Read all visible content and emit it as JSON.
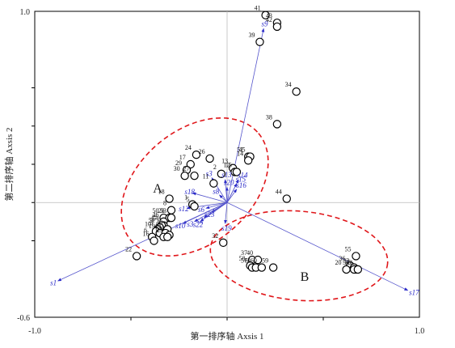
{
  "chart_data": {
    "type": "scatter",
    "title": "",
    "xlabel": "第一排序轴  Axsis 1",
    "ylabel": "第二排序轴  Axsis 2",
    "xlim": [
      -1.0,
      1.0
    ],
    "ylim": [
      -0.6,
      1.0
    ],
    "x_tick_labels": [
      {
        "value": -1.0,
        "label": "-1.0"
      },
      {
        "value": 1.0,
        "label": "1.0"
      }
    ],
    "y_tick_labels": [
      {
        "value": 1.0,
        "label": "1.0"
      },
      {
        "value": -0.6,
        "label": "-0.6"
      }
    ],
    "x_minor_ticks": [
      -0.5,
      0.0,
      0.5
    ],
    "y_minor_ticks": [
      0.6,
      0.4,
      0.2,
      0.0,
      -0.2
    ],
    "grid": false,
    "samples": [
      {
        "label": "41",
        "x": 0.2,
        "y": 0.98
      },
      {
        "label": "43",
        "x": 0.26,
        "y": 0.94
      },
      {
        "label": "42",
        "x": 0.26,
        "y": 0.92
      },
      {
        "label": "39",
        "x": 0.17,
        "y": 0.84
      },
      {
        "label": "34",
        "x": 0.36,
        "y": 0.58
      },
      {
        "label": "38",
        "x": 0.26,
        "y": 0.41
      },
      {
        "label": "52",
        "x": 0.11,
        "y": 0.24
      },
      {
        "label": "45",
        "x": 0.12,
        "y": 0.24
      },
      {
        "label": "14",
        "x": 0.11,
        "y": 0.22
      },
      {
        "label": "13",
        "x": 0.03,
        "y": 0.18
      },
      {
        "label": "12",
        "x": 0.04,
        "y": 0.16
      },
      {
        "label": "15",
        "x": 0.05,
        "y": 0.16
      },
      {
        "label": "24",
        "x": -0.16,
        "y": 0.25
      },
      {
        "label": "26",
        "x": -0.09,
        "y": 0.23
      },
      {
        "label": "17",
        "x": -0.19,
        "y": 0.2
      },
      {
        "label": "29",
        "x": -0.21,
        "y": 0.17
      },
      {
        "label": "27",
        "x": -0.17,
        "y": 0.14
      },
      {
        "label": "30",
        "x": -0.22,
        "y": 0.14
      },
      {
        "label": "2",
        "x": -0.03,
        "y": 0.15
      },
      {
        "label": "11",
        "x": -0.07,
        "y": 0.1
      },
      {
        "label": "18",
        "x": -0.3,
        "y": 0.02
      },
      {
        "label": "44",
        "x": 0.31,
        "y": 0.02
      },
      {
        "label": "8",
        "x": -0.29,
        "y": -0.04
      },
      {
        "label": "1",
        "x": -0.18,
        "y": -0.01
      },
      {
        "label": "5",
        "x": -0.17,
        "y": -0.02
      },
      {
        "label": "50",
        "x": -0.33,
        "y": -0.08
      },
      {
        "label": "28",
        "x": -0.3,
        "y": -0.08
      },
      {
        "label": "53",
        "x": -0.29,
        "y": -0.08
      },
      {
        "label": "46",
        "x": -0.33,
        "y": -0.1
      },
      {
        "label": "54",
        "x": -0.33,
        "y": -0.12
      },
      {
        "label": "47",
        "x": -0.34,
        "y": -0.12
      },
      {
        "label": "51",
        "x": -0.35,
        "y": -0.13
      },
      {
        "label": "3",
        "x": -0.36,
        "y": -0.14
      },
      {
        "label": "10",
        "x": -0.37,
        "y": -0.15
      },
      {
        "label": "48",
        "x": -0.31,
        "y": -0.14
      },
      {
        "label": "6",
        "x": -0.39,
        "y": -0.18
      },
      {
        "label": "19",
        "x": -0.35,
        "y": -0.16
      },
      {
        "label": "49",
        "x": -0.32,
        "y": -0.16
      },
      {
        "label": "31",
        "x": -0.3,
        "y": -0.17
      },
      {
        "label": "16",
        "x": -0.38,
        "y": -0.2
      },
      {
        "label": "9",
        "x": -0.33,
        "y": -0.18
      },
      {
        "label": "23",
        "x": -0.31,
        "y": -0.18
      },
      {
        "label": "22",
        "x": -0.47,
        "y": -0.28
      },
      {
        "label": "32",
        "x": -0.02,
        "y": -0.21
      },
      {
        "label": "37",
        "x": 0.13,
        "y": -0.3
      },
      {
        "label": "40",
        "x": 0.16,
        "y": -0.3
      },
      {
        "label": "58",
        "x": 0.12,
        "y": -0.33
      },
      {
        "label": "57",
        "x": 0.13,
        "y": -0.34
      },
      {
        "label": "61",
        "x": 0.15,
        "y": -0.34
      },
      {
        "label": "60",
        "x": 0.18,
        "y": -0.34
      },
      {
        "label": "59",
        "x": 0.24,
        "y": -0.34
      },
      {
        "label": "55",
        "x": 0.67,
        "y": -0.28
      },
      {
        "label": "36",
        "x": 0.64,
        "y": -0.33
      },
      {
        "label": "33",
        "x": 0.66,
        "y": -0.34
      },
      {
        "label": "20",
        "x": 0.62,
        "y": -0.35
      },
      {
        "label": "35",
        "x": 0.67,
        "y": -0.35
      },
      {
        "label": "56",
        "x": 0.66,
        "y": -0.35
      },
      {
        "label": "21",
        "x": 0.68,
        "y": -0.35
      }
    ],
    "vectors": [
      {
        "label": "s9",
        "x": 0.19,
        "y": 0.91
      },
      {
        "label": "s14",
        "x": 0.06,
        "y": 0.12
      },
      {
        "label": "s15",
        "x": 0.05,
        "y": 0.1
      },
      {
        "label": "s16",
        "x": 0.05,
        "y": 0.07
      },
      {
        "label": "s13",
        "x": -0.01,
        "y": 0.12
      },
      {
        "label": "s3",
        "x": -0.08,
        "y": 0.13
      },
      {
        "label": "s20",
        "x": 0.0,
        "y": 0.08
      },
      {
        "label": "s18",
        "x": -0.18,
        "y": 0.05
      },
      {
        "label": "s8",
        "x": -0.04,
        "y": 0.04
      },
      {
        "label": "s12",
        "x": -0.21,
        "y": -0.03
      },
      {
        "label": "s6",
        "x": -0.11,
        "y": -0.03
      },
      {
        "label": "s23",
        "x": -0.08,
        "y": -0.05
      },
      {
        "label": "s2",
        "x": -0.12,
        "y": -0.08
      },
      {
        "label": "s10",
        "x": -0.23,
        "y": -0.11
      },
      {
        "label": "s3",
        "x": -0.17,
        "y": -0.1
      },
      {
        "label": "s22",
        "x": -0.14,
        "y": -0.1
      },
      {
        "label": "s19",
        "x": -0.01,
        "y": -0.11
      },
      {
        "label": "s1",
        "x": -0.88,
        "y": -0.41
      },
      {
        "label": "s17",
        "x": 0.94,
        "y": -0.46
      }
    ],
    "groups": [
      {
        "label": "A"
      },
      {
        "label": "B"
      }
    ]
  }
}
